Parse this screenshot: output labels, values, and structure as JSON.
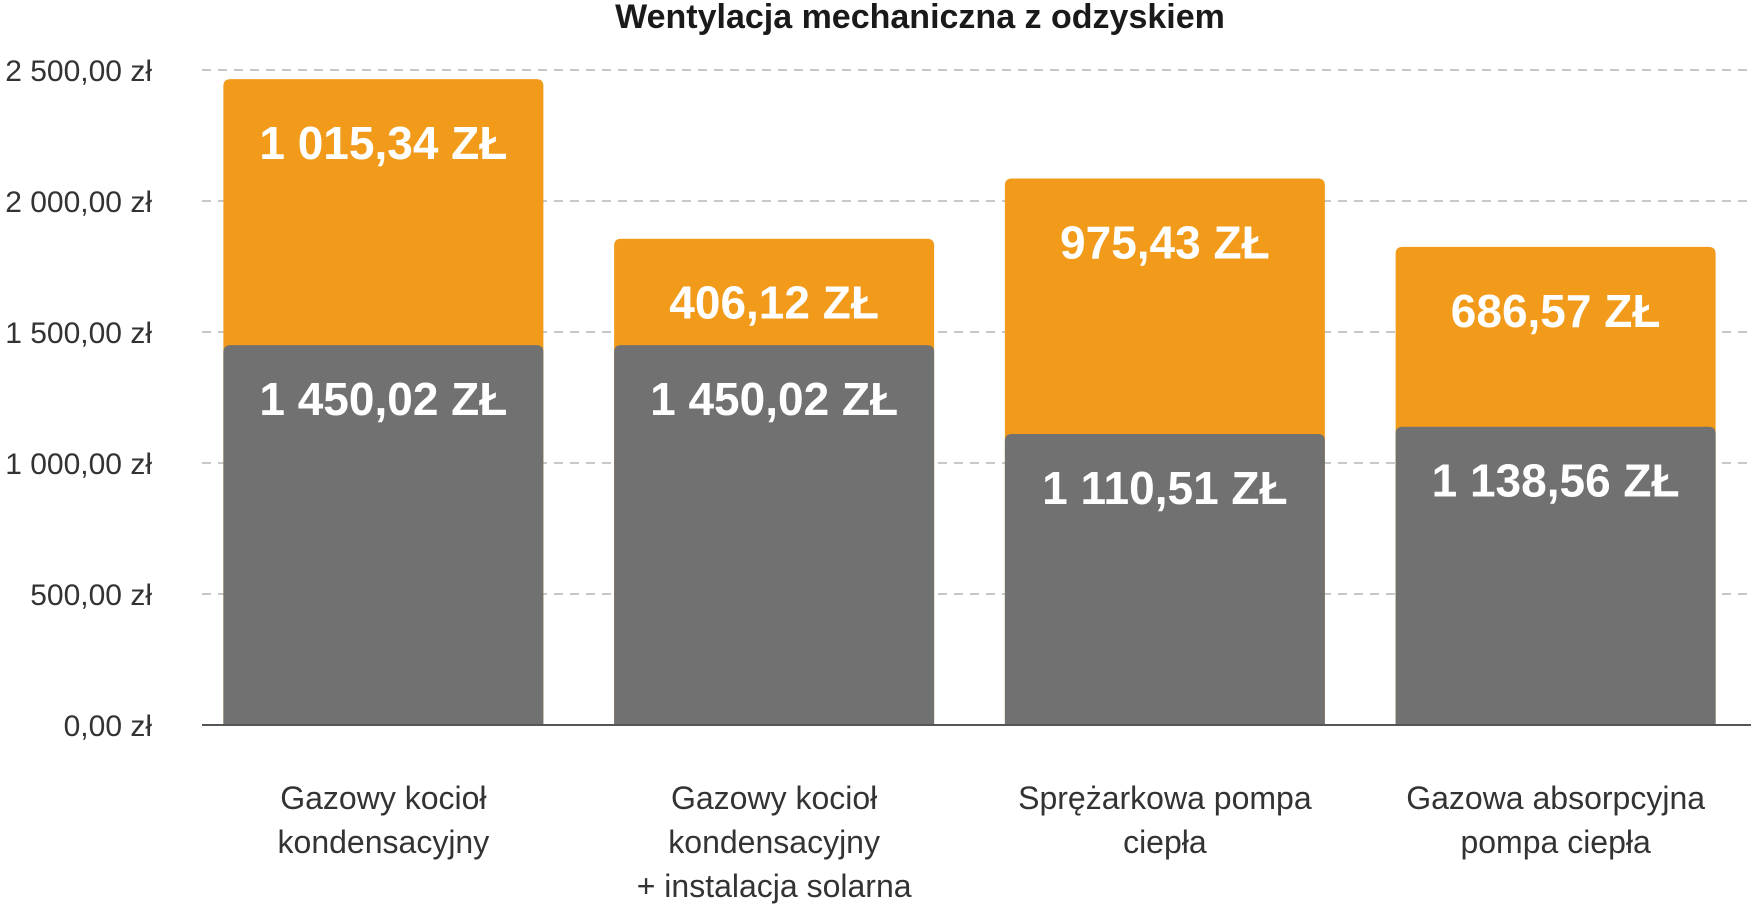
{
  "chart_data": {
    "type": "bar",
    "stacked": true,
    "title": "Wentylacja mechaniczna z odzyskiem",
    "xlabel": "",
    "ylabel": "",
    "ylim": [
      0,
      2500
    ],
    "grid": true,
    "yticks": [
      {
        "value": 0,
        "label": "0,00 zł"
      },
      {
        "value": 500,
        "label": "500,00 zł"
      },
      {
        "value": 1000,
        "label": "1 000,00 zł"
      },
      {
        "value": 1500,
        "label": "1 500,00 zł"
      },
      {
        "value": 2000,
        "label": "2 000,00 zł"
      },
      {
        "value": 2500,
        "label": "2 500,00 zł"
      }
    ],
    "categories": [
      [
        "Gazowy kocioł",
        "kondensacyjny"
      ],
      [
        "Gazowy kocioł",
        "kondensacyjny",
        "+ instalacja solarna"
      ],
      [
        "Sprężarkowa pompa",
        "ciepła"
      ],
      [
        "Gazowa absorpcyjna",
        "pompa ciepła"
      ]
    ],
    "series": [
      {
        "color": "#717171",
        "values": [
          1450.02,
          1450.02,
          1110.51,
          1138.56
        ],
        "labels": [
          "1 450,02 ZŁ",
          "1 450,02 ZŁ",
          "1 110,51 ZŁ",
          "1 138,56 ZŁ"
        ]
      },
      {
        "color": "#F29A19",
        "values": [
          1015.34,
          406.12,
          975.43,
          686.57
        ],
        "labels": [
          "1 015,34 ZŁ",
          "406,12 ZŁ",
          "975,43 ZŁ",
          "686,57 ZŁ"
        ]
      }
    ],
    "colors": {
      "grid": "#c8c8c8",
      "axis": "#555555"
    }
  }
}
